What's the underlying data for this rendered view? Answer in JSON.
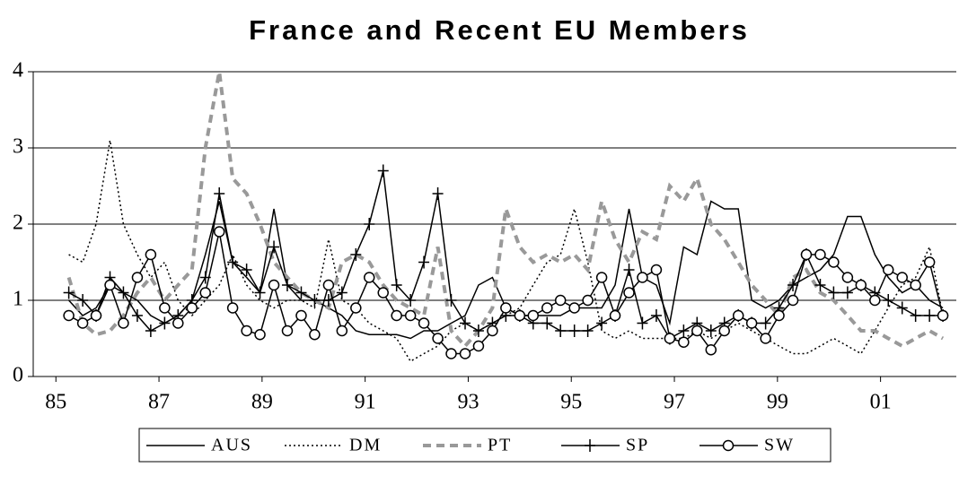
{
  "chart_data": {
    "type": "line",
    "title": "France and Recent EU Members",
    "x": [
      85.25,
      85.52,
      85.78,
      86.05,
      86.31,
      86.58,
      86.84,
      87.11,
      87.37,
      87.64,
      87.9,
      88.17,
      88.43,
      88.7,
      88.96,
      89.23,
      89.49,
      89.76,
      90.02,
      90.29,
      90.55,
      90.82,
      91.08,
      91.35,
      91.61,
      91.88,
      92.14,
      92.41,
      92.67,
      92.94,
      93.2,
      93.47,
      93.73,
      94.0,
      94.26,
      94.53,
      94.79,
      95.06,
      95.32,
      95.59,
      95.85,
      96.12,
      96.38,
      96.65,
      96.91,
      97.18,
      97.44,
      97.71,
      97.97,
      98.24,
      98.5,
      98.77,
      99.03,
      99.3,
      99.56,
      99.83,
      100.09,
      100.36,
      100.62,
      100.89,
      101.15,
      101.42,
      101.68,
      101.95,
      102.21
    ],
    "series": [
      {
        "name": "AUS",
        "color": "#000000",
        "dash": "solid",
        "marker": "none",
        "values": [
          1.0,
          0.8,
          0.9,
          1.2,
          1.1,
          1.0,
          0.8,
          0.7,
          0.8,
          1.0,
          1.6,
          2.3,
          1.5,
          1.3,
          1.1,
          2.2,
          1.2,
          1.0,
          1.0,
          0.9,
          0.8,
          0.6,
          0.55,
          0.55,
          0.55,
          0.5,
          0.6,
          0.6,
          0.7,
          0.8,
          1.2,
          1.3,
          0.9,
          0.8,
          0.8,
          0.8,
          0.8,
          0.9,
          0.9,
          0.9,
          1.2,
          2.2,
          1.3,
          1.2,
          0.7,
          1.7,
          1.6,
          2.3,
          2.2,
          2.2,
          1.0,
          0.9,
          1.0,
          1.2,
          1.3,
          1.4,
          1.6,
          2.1,
          2.1,
          1.6,
          1.3,
          1.1,
          1.2,
          1.0,
          0.9
        ]
      },
      {
        "name": "DM",
        "color": "#000000",
        "dash": "dotted",
        "marker": "none",
        "values": [
          1.6,
          1.5,
          2.0,
          3.1,
          2.0,
          1.6,
          1.3,
          1.5,
          1.0,
          0.8,
          1.0,
          1.2,
          1.6,
          1.2,
          1.0,
          0.9,
          1.0,
          1.0,
          0.9,
          1.8,
          1.0,
          0.9,
          0.7,
          0.6,
          0.5,
          0.2,
          0.3,
          0.4,
          0.6,
          0.7,
          0.6,
          0.7,
          0.8,
          0.9,
          1.2,
          1.5,
          1.6,
          2.2,
          1.5,
          0.6,
          0.5,
          0.6,
          0.5,
          0.5,
          0.5,
          0.5,
          0.6,
          0.5,
          0.6,
          0.7,
          0.6,
          0.5,
          0.4,
          0.3,
          0.3,
          0.4,
          0.5,
          0.4,
          0.3,
          0.6,
          0.9,
          1.2,
          1.3,
          1.7,
          0.8
        ]
      },
      {
        "name": "PT",
        "color": "#999999",
        "dash": "dashed",
        "marker": "none",
        "values": [
          1.3,
          0.7,
          0.55,
          0.6,
          0.8,
          1.1,
          1.3,
          1.0,
          1.2,
          1.4,
          3.0,
          4.0,
          2.6,
          2.4,
          2.0,
          1.5,
          1.3,
          1.1,
          1.0,
          0.9,
          1.5,
          1.6,
          1.5,
          1.2,
          1.0,
          0.9,
          0.8,
          1.7,
          0.6,
          0.4,
          0.6,
          0.9,
          2.2,
          1.7,
          1.5,
          1.6,
          1.5,
          1.6,
          1.4,
          2.3,
          1.8,
          1.5,
          1.9,
          1.8,
          2.5,
          2.3,
          2.6,
          2.0,
          1.8,
          1.5,
          1.2,
          1.0,
          0.8,
          1.3,
          1.4,
          1.1,
          1.0,
          0.8,
          0.6,
          0.6,
          0.5,
          0.4,
          0.5,
          0.6,
          0.5
        ]
      },
      {
        "name": "SP",
        "color": "#000000",
        "dash": "solid",
        "marker": "plus",
        "values": [
          1.1,
          1.0,
          0.8,
          1.3,
          1.1,
          0.8,
          0.6,
          0.7,
          0.8,
          1.0,
          1.3,
          2.4,
          1.5,
          1.4,
          1.1,
          1.7,
          1.2,
          1.1,
          1.0,
          1.0,
          1.1,
          1.6,
          2.0,
          2.7,
          1.2,
          1.0,
          1.5,
          2.4,
          1.0,
          0.7,
          0.6,
          0.7,
          0.8,
          0.8,
          0.7,
          0.7,
          0.6,
          0.6,
          0.6,
          0.7,
          0.8,
          1.4,
          0.7,
          0.8,
          0.5,
          0.6,
          0.7,
          0.6,
          0.7,
          0.8,
          0.7,
          0.7,
          0.9,
          1.2,
          1.6,
          1.2,
          1.1,
          1.1,
          1.2,
          1.1,
          1.0,
          0.9,
          0.8,
          0.8,
          0.8
        ]
      },
      {
        "name": "SW",
        "color": "#000000",
        "dash": "solid",
        "marker": "circle",
        "values": [
          0.8,
          0.7,
          0.8,
          1.2,
          0.7,
          1.3,
          1.6,
          0.9,
          0.7,
          0.9,
          1.1,
          1.9,
          0.9,
          0.6,
          0.55,
          1.2,
          0.6,
          0.8,
          0.55,
          1.2,
          0.6,
          0.9,
          1.3,
          1.1,
          0.8,
          0.8,
          0.7,
          0.5,
          0.3,
          0.3,
          0.4,
          0.6,
          0.9,
          0.8,
          0.8,
          0.9,
          1.0,
          0.9,
          1.0,
          1.3,
          0.8,
          1.1,
          1.3,
          1.4,
          0.5,
          0.45,
          0.6,
          0.35,
          0.6,
          0.8,
          0.7,
          0.5,
          0.8,
          1.0,
          1.6,
          1.6,
          1.5,
          1.3,
          1.2,
          1.0,
          1.4,
          1.3,
          1.2,
          1.5,
          0.8
        ]
      }
    ],
    "xlim": [
      84.56,
      102.47
    ],
    "xticks": [
      85,
      87,
      89,
      91,
      93,
      95,
      97,
      99,
      {
        "value": 101,
        "label": "01"
      }
    ],
    "ylim": [
      0,
      4
    ],
    "yticks": [
      0,
      1,
      2,
      3,
      4
    ],
    "grid": true,
    "legend": "bottom"
  }
}
